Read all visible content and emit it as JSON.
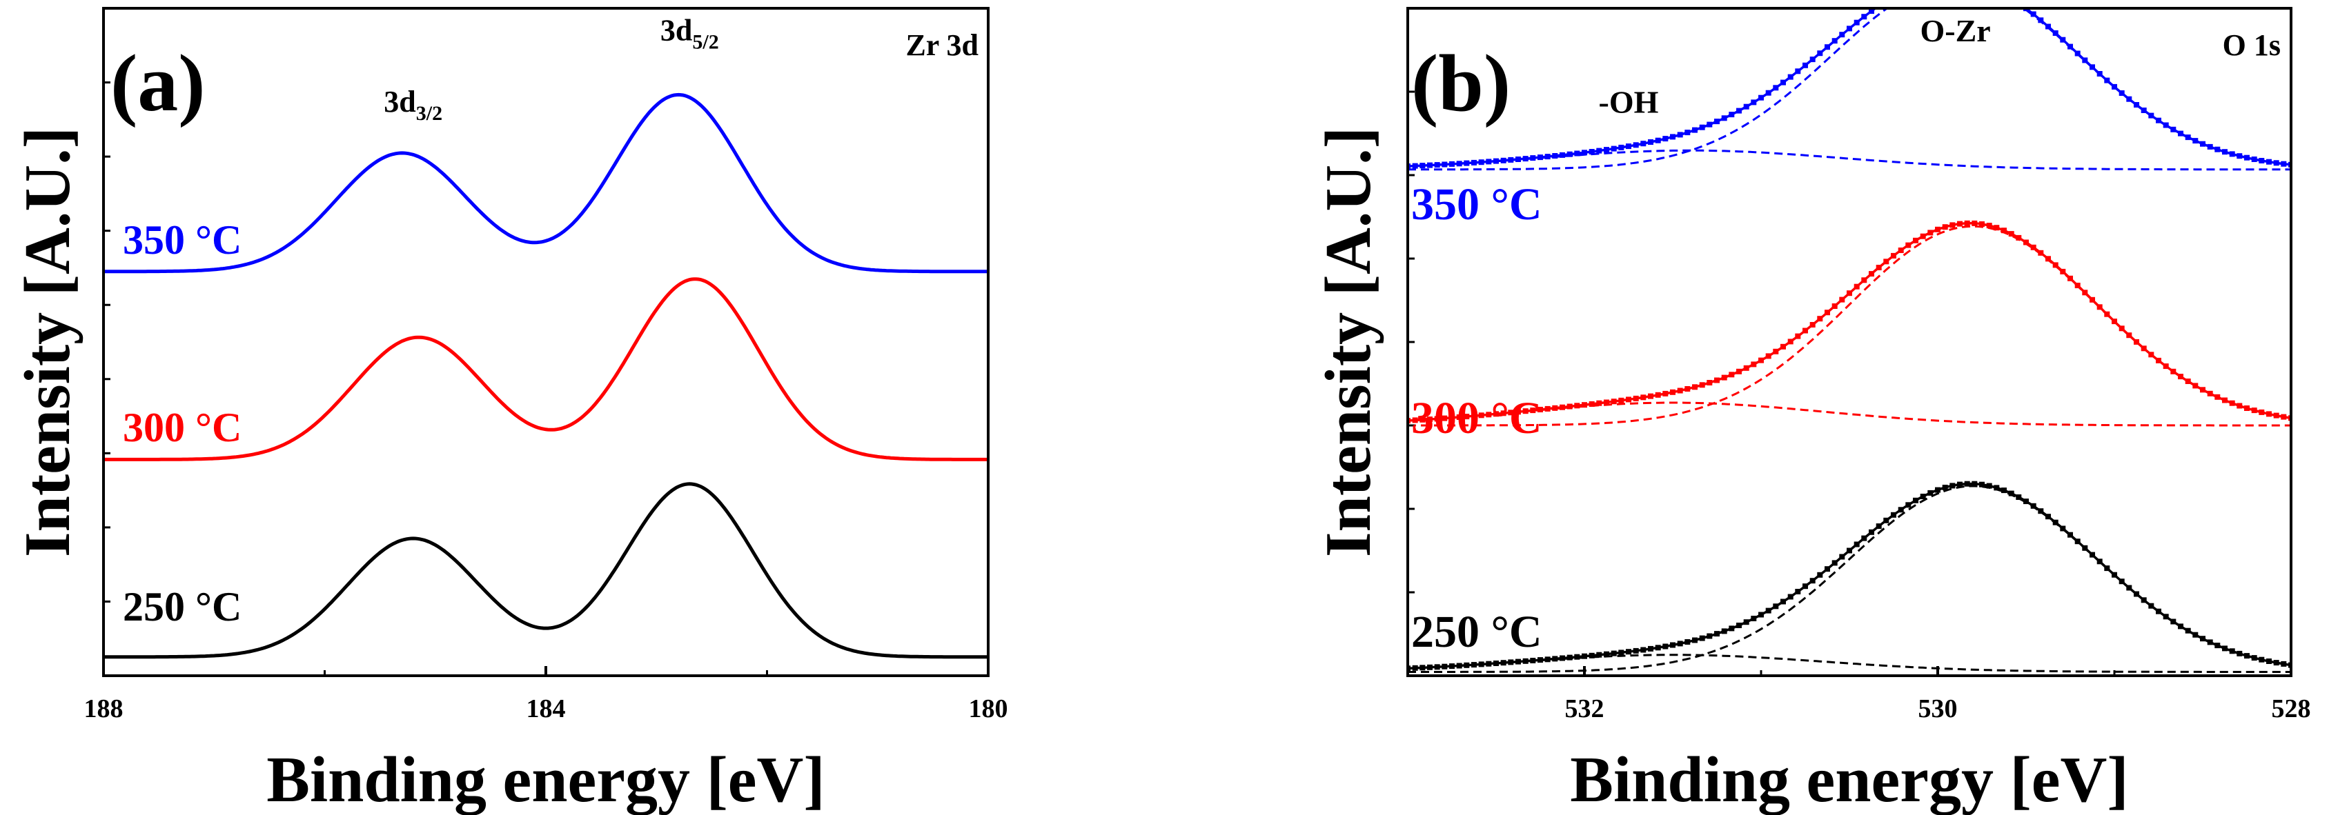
{
  "chart_data": [
    {
      "type": "line",
      "panel_label": "(a)",
      "corner_label": "Zr 3d",
      "xlabel": "Binding energy [eV]",
      "ylabel": "Intensity [A.U.]",
      "xlim": [
        188,
        180
      ],
      "x_reversed": true,
      "ylim": [
        -0.1,
        3.45
      ],
      "yticks_labeled": false,
      "xticks": [
        188,
        184,
        180
      ],
      "xtick_labels": [
        "188",
        "184",
        "180"
      ],
      "colors": {
        "250": "#000000",
        "300": "#ff0000",
        "350": "#0000ff"
      },
      "series": [
        {
          "name": "250 °C",
          "label": "250 °C",
          "color": "#000000",
          "offset": 0.0,
          "peaks": [
            {
              "center": 185.2,
              "height": 0.63,
              "fwhm": 1.4
            },
            {
              "center": 182.7,
              "height": 0.92,
              "fwhm": 1.35
            }
          ]
        },
        {
          "name": "300 °C",
          "label": "300 °C",
          "color": "#ff0000",
          "offset": 1.05,
          "peaks": [
            {
              "center": 185.15,
              "height": 0.65,
              "fwhm": 1.4
            },
            {
              "center": 182.65,
              "height": 0.96,
              "fwhm": 1.35
            }
          ]
        },
        {
          "name": "350 °C",
          "label": "350 °C",
          "color": "#0000ff",
          "offset": 2.05,
          "peaks": [
            {
              "center": 185.3,
              "height": 0.63,
              "fwhm": 1.4
            },
            {
              "center": 182.8,
              "height": 0.94,
              "fwhm": 1.35
            }
          ]
        }
      ],
      "annotations": [
        {
          "text_main": "3d",
          "text_sub": "3/2",
          "x": 185.2,
          "y": 2.9
        },
        {
          "text_main": "3d",
          "text_sub": "5/2",
          "x": 182.7,
          "y": 3.28
        }
      ]
    },
    {
      "type": "line",
      "panel_label": "(b)",
      "corner_label": "O 1s",
      "xlabel": "Binding energy [eV]",
      "ylabel": "Intensity [A.U.]",
      "xlim": [
        533,
        528
      ],
      "x_reversed": true,
      "ylim": [
        -0.02,
        3.5
      ],
      "yticks_labeled": false,
      "xticks": [
        532,
        530,
        528
      ],
      "xtick_labels": [
        "532",
        "530",
        "528"
      ],
      "colors": {
        "250": "#000000",
        "300": "#ff0000",
        "350": "#0000ff"
      },
      "series": [
        {
          "name": "250 °C",
          "label": "250 °C",
          "color": "#000000",
          "offset": 0.0,
          "components": [
            {
              "name": "O-Zr",
              "center": 529.8,
              "height": 0.98,
              "fwhm": 1.65
            },
            {
              "name": "-OH",
              "center": 531.5,
              "height": 0.09,
              "fwhm": 2.0
            }
          ]
        },
        {
          "name": "300 °C",
          "label": "300 °C",
          "color": "#ff0000",
          "offset": 1.3,
          "components": [
            {
              "name": "O-Zr",
              "center": 529.8,
              "height": 1.05,
              "fwhm": 1.65
            },
            {
              "name": "-OH",
              "center": 531.5,
              "height": 0.12,
              "fwhm": 2.0
            }
          ]
        },
        {
          "name": "350 °C",
          "label": "350 °C",
          "color": "#0000ff",
          "offset": 2.65,
          "components": [
            {
              "name": "O-Zr",
              "center": 529.9,
              "height": 0.99,
              "fwhm": 1.65
            },
            {
              "name": "-OH",
              "center": 531.4,
              "height": 0.1,
              "fwhm": 2.0
            }
          ]
        }
      ],
      "annotations": [
        {
          "text": "O-Zr",
          "x": 529.9,
          "y": 3.8
        },
        {
          "text": "-OH",
          "x": 531.75,
          "y": 2.95
        }
      ]
    }
  ]
}
